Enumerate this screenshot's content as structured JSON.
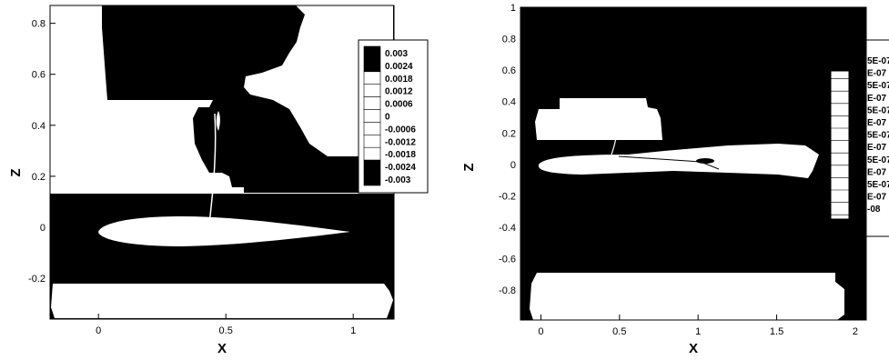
{
  "chart_data": [
    {
      "type": "heatmap",
      "xlabel": "X",
      "ylabel": "Z",
      "xlim": [
        -0.19,
        1.16
      ],
      "ylim": [
        -0.36,
        0.87
      ],
      "x_ticks": [
        {
          "value": 0,
          "label": "0"
        },
        {
          "value": 0.5,
          "label": "0.5"
        },
        {
          "value": 1,
          "label": "1"
        }
      ],
      "y_ticks": [
        {
          "value": -0.2,
          "label": "-0.2"
        },
        {
          "value": 0,
          "label": "0"
        },
        {
          "value": 0.2,
          "label": "0.2"
        },
        {
          "value": 0.4,
          "label": "0.4"
        },
        {
          "value": 0.6,
          "label": "0.6"
        },
        {
          "value": 0.8,
          "label": "0.8"
        }
      ],
      "legend": {
        "placement": "right",
        "levels": [
          "0.003",
          "0.0024",
          "0.0018",
          "0.0012",
          "0.0006",
          "0",
          "-0.0006",
          "-0.0012",
          "-0.0018",
          "-0.0024",
          "-0.003"
        ]
      },
      "colors": {
        "fill_dark": "#000000",
        "fill_light": "#ffffff"
      }
    },
    {
      "type": "heatmap",
      "xlabel": "X",
      "ylabel": "Z",
      "xlim": [
        -0.13,
        2.07
      ],
      "ylim": [
        -0.99,
        1.0
      ],
      "x_ticks": [
        {
          "value": 0,
          "label": "0"
        },
        {
          "value": 0.5,
          "label": "0.5"
        },
        {
          "value": 1,
          "label": "1"
        },
        {
          "value": 1.5,
          "label": "1.5"
        },
        {
          "value": 2,
          "label": "2"
        }
      ],
      "y_ticks": [
        {
          "value": -0.8,
          "label": "-0.8"
        },
        {
          "value": -0.6,
          "label": "-0.6"
        },
        {
          "value": -0.4,
          "label": "-0.4"
        },
        {
          "value": -0.2,
          "label": "-0.2"
        },
        {
          "value": 0,
          "label": "0"
        },
        {
          "value": 0.2,
          "label": "0.2"
        },
        {
          "value": 0.4,
          "label": "0.4"
        },
        {
          "value": 0.6,
          "label": "0.6"
        },
        {
          "value": 0.8,
          "label": "0.8"
        },
        {
          "value": 1,
          "label": "1"
        }
      ],
      "legend": {
        "placement": "right",
        "levels": [
          "5E-07",
          "E-07",
          "5E-07",
          "E-07",
          "5E-07",
          "E-07",
          "5E-07",
          "E-07",
          "5E-07",
          "E-07",
          "5E-07",
          "E-07",
          "-08"
        ]
      },
      "colors": {
        "fill_dark": "#000000",
        "fill_light": "#ffffff"
      }
    }
  ]
}
